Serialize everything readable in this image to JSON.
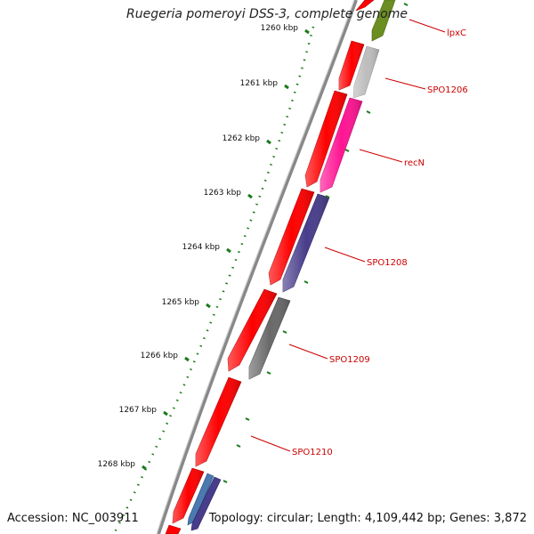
{
  "title": "Ruegeria pomeroyi DSS-3, complete genome",
  "accession": "Accession: NC_003911",
  "summary": "Topology: circular; Length: 4,109,442 bp; Genes: 3,872",
  "ticks": [
    "1260 kbp",
    "1261 kbp",
    "1262 kbp",
    "1263 kbp",
    "1264 kbp",
    "1265 kbp",
    "1266 kbp",
    "1267 kbp",
    "1268 kbp"
  ],
  "genes": [
    {
      "name": "lpxC",
      "color": "#6b8e23"
    },
    {
      "name": "SPO1206",
      "color": "#bdbdbd"
    },
    {
      "name": "recN",
      "color": "#ff1493"
    },
    {
      "name": "SPO1208",
      "color": "#483d8b"
    },
    {
      "name": "SPO1209",
      "color": "#696969"
    },
    {
      "name": "SPO1210",
      "color": "#ff0000"
    }
  ],
  "colors": {
    "cds": "#ff0000",
    "tick": "#1a7a1a",
    "backbone": "#888888",
    "label": "#cc0000"
  }
}
